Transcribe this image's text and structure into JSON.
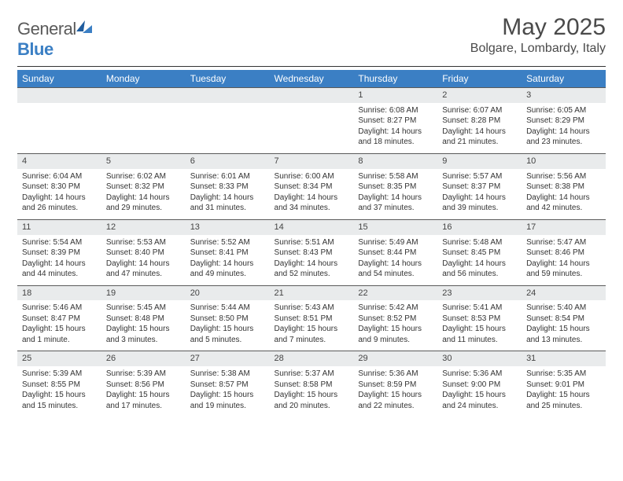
{
  "brand": {
    "part1": "General",
    "part2": "Blue"
  },
  "title": "May 2025",
  "location": "Bolgare, Lombardy, Italy",
  "weekdays": [
    "Sunday",
    "Monday",
    "Tuesday",
    "Wednesday",
    "Thursday",
    "Friday",
    "Saturday"
  ],
  "colors": {
    "header_bg": "#3b7fc4",
    "header_text": "#ffffff",
    "daynum_bg": "#e9ebec",
    "rule": "#333333",
    "brand_dark": "#1f5c9e",
    "brand_light": "#3b7fc4"
  },
  "weeks": [
    [
      {},
      {},
      {},
      {},
      {
        "n": "1",
        "sr": "Sunrise: 6:08 AM",
        "ss": "Sunset: 8:27 PM",
        "d1": "Daylight: 14 hours",
        "d2": "and 18 minutes."
      },
      {
        "n": "2",
        "sr": "Sunrise: 6:07 AM",
        "ss": "Sunset: 8:28 PM",
        "d1": "Daylight: 14 hours",
        "d2": "and 21 minutes."
      },
      {
        "n": "3",
        "sr": "Sunrise: 6:05 AM",
        "ss": "Sunset: 8:29 PM",
        "d1": "Daylight: 14 hours",
        "d2": "and 23 minutes."
      }
    ],
    [
      {
        "n": "4",
        "sr": "Sunrise: 6:04 AM",
        "ss": "Sunset: 8:30 PM",
        "d1": "Daylight: 14 hours",
        "d2": "and 26 minutes."
      },
      {
        "n": "5",
        "sr": "Sunrise: 6:02 AM",
        "ss": "Sunset: 8:32 PM",
        "d1": "Daylight: 14 hours",
        "d2": "and 29 minutes."
      },
      {
        "n": "6",
        "sr": "Sunrise: 6:01 AM",
        "ss": "Sunset: 8:33 PM",
        "d1": "Daylight: 14 hours",
        "d2": "and 31 minutes."
      },
      {
        "n": "7",
        "sr": "Sunrise: 6:00 AM",
        "ss": "Sunset: 8:34 PM",
        "d1": "Daylight: 14 hours",
        "d2": "and 34 minutes."
      },
      {
        "n": "8",
        "sr": "Sunrise: 5:58 AM",
        "ss": "Sunset: 8:35 PM",
        "d1": "Daylight: 14 hours",
        "d2": "and 37 minutes."
      },
      {
        "n": "9",
        "sr": "Sunrise: 5:57 AM",
        "ss": "Sunset: 8:37 PM",
        "d1": "Daylight: 14 hours",
        "d2": "and 39 minutes."
      },
      {
        "n": "10",
        "sr": "Sunrise: 5:56 AM",
        "ss": "Sunset: 8:38 PM",
        "d1": "Daylight: 14 hours",
        "d2": "and 42 minutes."
      }
    ],
    [
      {
        "n": "11",
        "sr": "Sunrise: 5:54 AM",
        "ss": "Sunset: 8:39 PM",
        "d1": "Daylight: 14 hours",
        "d2": "and 44 minutes."
      },
      {
        "n": "12",
        "sr": "Sunrise: 5:53 AM",
        "ss": "Sunset: 8:40 PM",
        "d1": "Daylight: 14 hours",
        "d2": "and 47 minutes."
      },
      {
        "n": "13",
        "sr": "Sunrise: 5:52 AM",
        "ss": "Sunset: 8:41 PM",
        "d1": "Daylight: 14 hours",
        "d2": "and 49 minutes."
      },
      {
        "n": "14",
        "sr": "Sunrise: 5:51 AM",
        "ss": "Sunset: 8:43 PM",
        "d1": "Daylight: 14 hours",
        "d2": "and 52 minutes."
      },
      {
        "n": "15",
        "sr": "Sunrise: 5:49 AM",
        "ss": "Sunset: 8:44 PM",
        "d1": "Daylight: 14 hours",
        "d2": "and 54 minutes."
      },
      {
        "n": "16",
        "sr": "Sunrise: 5:48 AM",
        "ss": "Sunset: 8:45 PM",
        "d1": "Daylight: 14 hours",
        "d2": "and 56 minutes."
      },
      {
        "n": "17",
        "sr": "Sunrise: 5:47 AM",
        "ss": "Sunset: 8:46 PM",
        "d1": "Daylight: 14 hours",
        "d2": "and 59 minutes."
      }
    ],
    [
      {
        "n": "18",
        "sr": "Sunrise: 5:46 AM",
        "ss": "Sunset: 8:47 PM",
        "d1": "Daylight: 15 hours",
        "d2": "and 1 minute."
      },
      {
        "n": "19",
        "sr": "Sunrise: 5:45 AM",
        "ss": "Sunset: 8:48 PM",
        "d1": "Daylight: 15 hours",
        "d2": "and 3 minutes."
      },
      {
        "n": "20",
        "sr": "Sunrise: 5:44 AM",
        "ss": "Sunset: 8:50 PM",
        "d1": "Daylight: 15 hours",
        "d2": "and 5 minutes."
      },
      {
        "n": "21",
        "sr": "Sunrise: 5:43 AM",
        "ss": "Sunset: 8:51 PM",
        "d1": "Daylight: 15 hours",
        "d2": "and 7 minutes."
      },
      {
        "n": "22",
        "sr": "Sunrise: 5:42 AM",
        "ss": "Sunset: 8:52 PM",
        "d1": "Daylight: 15 hours",
        "d2": "and 9 minutes."
      },
      {
        "n": "23",
        "sr": "Sunrise: 5:41 AM",
        "ss": "Sunset: 8:53 PM",
        "d1": "Daylight: 15 hours",
        "d2": "and 11 minutes."
      },
      {
        "n": "24",
        "sr": "Sunrise: 5:40 AM",
        "ss": "Sunset: 8:54 PM",
        "d1": "Daylight: 15 hours",
        "d2": "and 13 minutes."
      }
    ],
    [
      {
        "n": "25",
        "sr": "Sunrise: 5:39 AM",
        "ss": "Sunset: 8:55 PM",
        "d1": "Daylight: 15 hours",
        "d2": "and 15 minutes."
      },
      {
        "n": "26",
        "sr": "Sunrise: 5:39 AM",
        "ss": "Sunset: 8:56 PM",
        "d1": "Daylight: 15 hours",
        "d2": "and 17 minutes."
      },
      {
        "n": "27",
        "sr": "Sunrise: 5:38 AM",
        "ss": "Sunset: 8:57 PM",
        "d1": "Daylight: 15 hours",
        "d2": "and 19 minutes."
      },
      {
        "n": "28",
        "sr": "Sunrise: 5:37 AM",
        "ss": "Sunset: 8:58 PM",
        "d1": "Daylight: 15 hours",
        "d2": "and 20 minutes."
      },
      {
        "n": "29",
        "sr": "Sunrise: 5:36 AM",
        "ss": "Sunset: 8:59 PM",
        "d1": "Daylight: 15 hours",
        "d2": "and 22 minutes."
      },
      {
        "n": "30",
        "sr": "Sunrise: 5:36 AM",
        "ss": "Sunset: 9:00 PM",
        "d1": "Daylight: 15 hours",
        "d2": "and 24 minutes."
      },
      {
        "n": "31",
        "sr": "Sunrise: 5:35 AM",
        "ss": "Sunset: 9:01 PM",
        "d1": "Daylight: 15 hours",
        "d2": "and 25 minutes."
      }
    ]
  ]
}
